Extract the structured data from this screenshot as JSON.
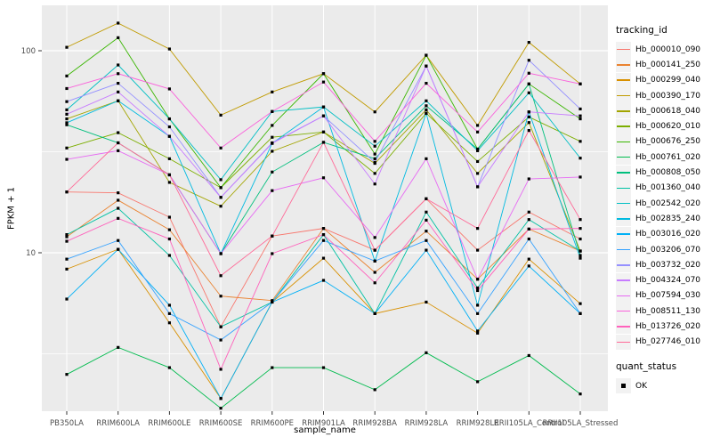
{
  "figure": {
    "background": "#FFFFFF",
    "panel_background": "#EBEBEB",
    "gridline_color": "#FFFFFF",
    "tick_color": "#333333",
    "tick_label_color": "#4D4D4D",
    "point_color": "#000000"
  },
  "chart_data": {
    "type": "line",
    "title": "",
    "xlabel": "sample_name",
    "ylabel": "FPKM + 1",
    "x_categories": [
      "PB350LA",
      "RRIM600LA",
      "RRIM600LE",
      "RRIM600SE",
      "RRIM600PE",
      "RRIM901LA",
      "RRIM928BA",
      "RRIM928LA",
      "RRIM928LE",
      "RRII105LA_Control",
      "RRII105LA_Stressed"
    ],
    "y_scale": "log10",
    "y_major_ticks": [
      10,
      100
    ],
    "y_tick_labels": [
      "10",
      "100"
    ],
    "y_minor_gridlines": [
      3.162,
      31.62
    ],
    "ylim": [
      1.65,
      170
    ],
    "point_shape": "filled-square",
    "legend_position": "right",
    "grid": true,
    "series": [
      {
        "id": "Hb_000010_090",
        "color": "#F8766D",
        "values": [
          20,
          19.8,
          15,
          4.3,
          12.1,
          13.2,
          10.3,
          18.5,
          10.3,
          15.9,
          11.7
        ]
      },
      {
        "id": "Hb_000141_250",
        "color": "#EA8331",
        "values": [
          12,
          18.2,
          13,
          6.1,
          5.8,
          13.2,
          8.0,
          12.8,
          7.4,
          13.1,
          10.2
        ]
      },
      {
        "id": "Hb_000299_040",
        "color": "#D89000",
        "values": [
          8.3,
          10.4,
          4.5,
          1.9,
          5.7,
          9.4,
          5.0,
          5.7,
          4.0,
          9.3,
          5.6
        ]
      },
      {
        "id": "Hb_000390_170",
        "color": "#C09B00",
        "values": [
          104,
          137,
          102,
          48,
          62.5,
          77,
          49.8,
          95,
          42.7,
          110,
          68.5
        ]
      },
      {
        "id": "Hb_000618_040",
        "color": "#A3A500",
        "values": [
          46,
          56.5,
          22.3,
          17,
          31.8,
          39.6,
          27.7,
          51,
          24.7,
          44.1,
          10.2
        ]
      },
      {
        "id": "Hb_000620_010",
        "color": "#7CAE00",
        "values": [
          33,
          39.3,
          29.2,
          21,
          37.3,
          39.6,
          24.7,
          49,
          28.3,
          47,
          35.6
        ]
      },
      {
        "id": "Hb_000676_250",
        "color": "#39B600",
        "values": [
          75,
          116,
          46,
          21,
          42.7,
          77,
          30.8,
          95,
          32.6,
          68.5,
          46
        ]
      },
      {
        "id": "Hb_000761_020",
        "color": "#00BB4E",
        "values": [
          2.5,
          3.4,
          2.7,
          1.7,
          2.7,
          2.7,
          2.1,
          3.2,
          2.3,
          3.1,
          2.0
        ]
      },
      {
        "id": "Hb_000808_050",
        "color": "#00BF7D",
        "values": [
          43,
          35,
          24.3,
          9.9,
          25.1,
          35.2,
          29.2,
          53.4,
          32.6,
          68.5,
          9.7
        ]
      },
      {
        "id": "Hb_001360_040",
        "color": "#00C1A3",
        "values": [
          12.3,
          16.6,
          9.7,
          4.3,
          5.7,
          12.3,
          5.0,
          15.9,
          6.7,
          14.6,
          10.2
        ]
      },
      {
        "id": "Hb_002542_020",
        "color": "#00BFC4",
        "values": [
          51,
          85,
          46,
          23,
          50,
          52.7,
          33.7,
          56.5,
          32,
          61.9,
          29.4
        ]
      },
      {
        "id": "Hb_002835_240",
        "color": "#00BAE0",
        "values": [
          44,
          56.5,
          37.7,
          9.9,
          34.8,
          52.7,
          9.1,
          49,
          5.5,
          49.8,
          9.4
        ]
      },
      {
        "id": "Hb_003016_020",
        "color": "#00B0F6",
        "values": [
          5.9,
          10.4,
          5.5,
          1.9,
          5.7,
          7.3,
          5.0,
          10.3,
          4.1,
          8.6,
          5.0
        ]
      },
      {
        "id": "Hb_003206_070",
        "color": "#35A2FF",
        "values": [
          9.3,
          11.5,
          5.0,
          3.7,
          5.7,
          11.5,
          9.1,
          11.5,
          5.0,
          11.7,
          5.0
        ]
      },
      {
        "id": "Hb_003732_020",
        "color": "#9590FF",
        "values": [
          56,
          69,
          42,
          18.8,
          35,
          47.6,
          28,
          84,
          21.2,
          89.7,
          51.5
        ]
      },
      {
        "id": "Hb_004324_070",
        "color": "#C77CFF",
        "values": [
          48.5,
          62.5,
          37.7,
          18.8,
          34.8,
          47.6,
          21.9,
          84,
          21.2,
          49.8,
          47.6
        ]
      },
      {
        "id": "Hb_007594_030",
        "color": "#E76BF3",
        "values": [
          29,
          32,
          24.3,
          9.9,
          20.3,
          23.5,
          11.9,
          29.2,
          7.4,
          23.2,
          23.7
        ]
      },
      {
        "id": "Hb_008511_130",
        "color": "#FA62DB",
        "values": [
          65,
          77,
          64.7,
          33,
          50,
          70,
          35.6,
          69,
          39.6,
          77.4,
          68.5
        ]
      },
      {
        "id": "Hb_013726_020",
        "color": "#FF62BC",
        "values": [
          11.4,
          14.8,
          11.7,
          2.65,
          9.9,
          12.3,
          7.1,
          14.5,
          6.5,
          13.1,
          13.2
        ]
      },
      {
        "id": "Hb_027746_010",
        "color": "#FF6A98",
        "values": [
          20,
          35,
          24.3,
          7.7,
          12.1,
          35.2,
          10.3,
          18.5,
          13.2,
          40.3,
          14.6
        ]
      }
    ]
  },
  "legend": {
    "title": "tracking_id",
    "quant": {
      "title": "quant_status",
      "items": [
        {
          "label": "OK",
          "marker": "black-square"
        }
      ]
    }
  }
}
